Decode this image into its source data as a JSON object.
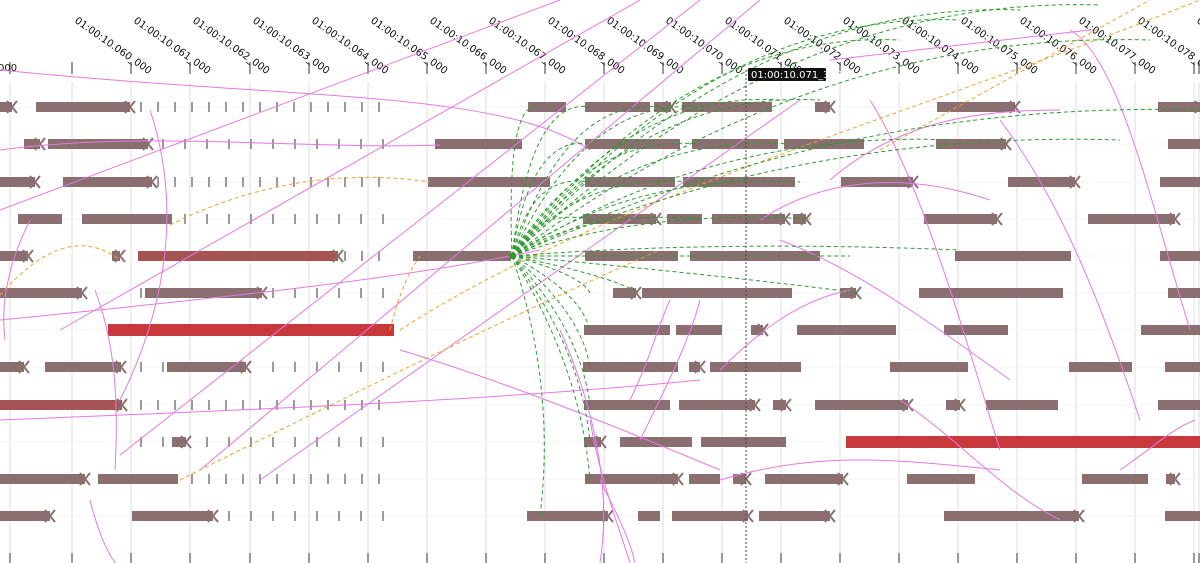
{
  "timeline": {
    "ticks": [
      {
        "label": "000"
      },
      {
        "label": "01:00:10.060_000"
      },
      {
        "label": "01:00:10.061_000"
      },
      {
        "label": "01:00:10.062_000"
      },
      {
        "label": "01:00:10.063_000"
      },
      {
        "label": "01:00:10.064_000"
      },
      {
        "label": "01:00:10.065_000"
      },
      {
        "label": "01:00:10.066_000"
      },
      {
        "label": "01:00:10.067_000"
      },
      {
        "label": "01:00:10.068_000"
      },
      {
        "label": "01:00:10.069_000"
      },
      {
        "label": "01:00:10.070_000"
      },
      {
        "label": "01:00:10.071_000"
      },
      {
        "label": "01:00:10.072_000"
      },
      {
        "label": "01:00:10.073_000"
      },
      {
        "label": "01:00:10.074_000"
      },
      {
        "label": "01:00:10.075_000"
      },
      {
        "label": "01:00:10.076_000"
      },
      {
        "label": "01:00:10.077_000"
      },
      {
        "label": "01:00:10.078_000"
      },
      {
        "label": "01:00:10.079_000"
      },
      {
        "label": "000"
      }
    ],
    "cursor_label": "01:00:10.071_398",
    "colors": {
      "bar": "#8a6e70",
      "bar_hot": "#c0393b",
      "flow_pink": "#e47ae4",
      "flow_green": "#2e9a2e",
      "flow_orange": "#f0a030",
      "grid": "#dddddd"
    }
  }
}
